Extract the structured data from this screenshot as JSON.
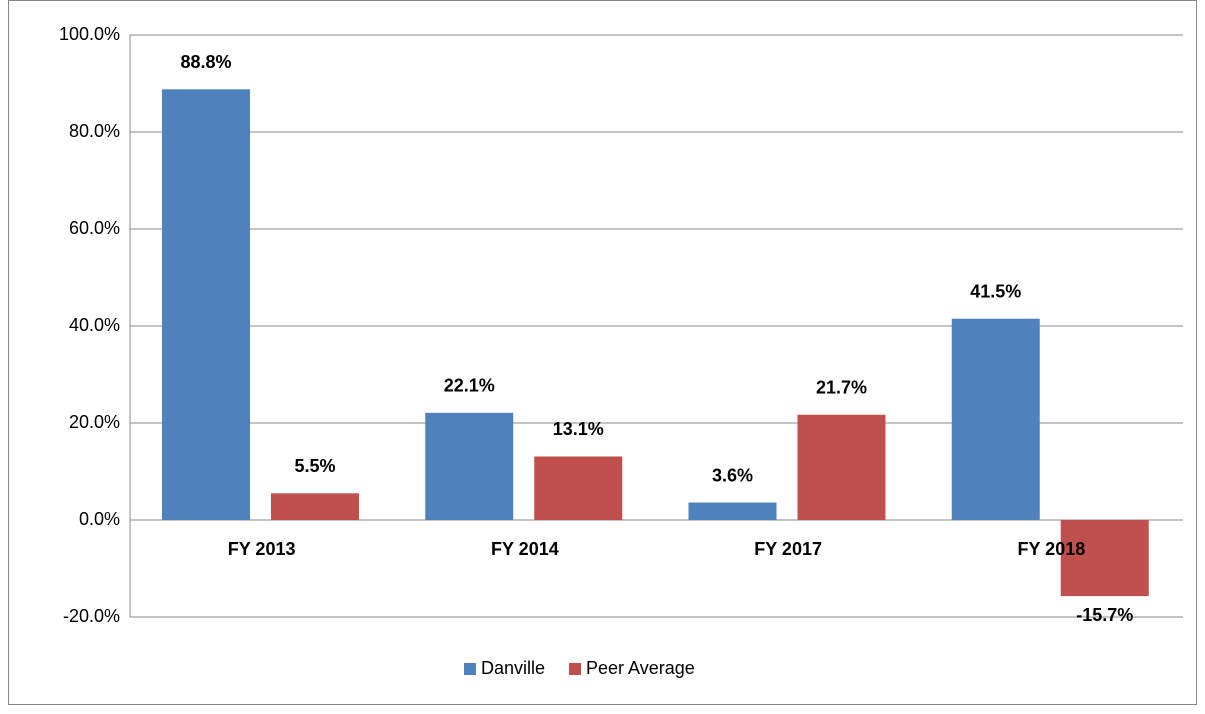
{
  "chart_data": {
    "type": "bar",
    "categories": [
      "FY 2013",
      "FY 2014",
      "FY 2017",
      "FY 2018"
    ],
    "series": [
      {
        "name": "Danville",
        "color": "#4f81bd",
        "values": [
          88.8,
          22.1,
          3.6,
          41.5
        ],
        "value_labels": [
          "88.8%",
          "22.1%",
          "3.6%",
          "41.5%"
        ]
      },
      {
        "name": "Peer Average",
        "color": "#c0504d",
        "values": [
          5.5,
          13.1,
          21.7,
          -15.7
        ],
        "value_labels": [
          "5.5%",
          "13.1%",
          "21.7%",
          "-15.7%"
        ]
      }
    ],
    "ylim": [
      -20,
      100
    ],
    "yticks": [
      {
        "value": -20,
        "label": "-20.0%"
      },
      {
        "value": 0,
        "label": "0.0%"
      },
      {
        "value": 20,
        "label": "20.0%"
      },
      {
        "value": 40,
        "label": "40.0%"
      },
      {
        "value": 60,
        "label": "60.0%"
      },
      {
        "value": 80,
        "label": "80.0%"
      },
      {
        "value": 100,
        "label": "100.0%"
      }
    ],
    "grid": true,
    "legend": "bottom"
  }
}
